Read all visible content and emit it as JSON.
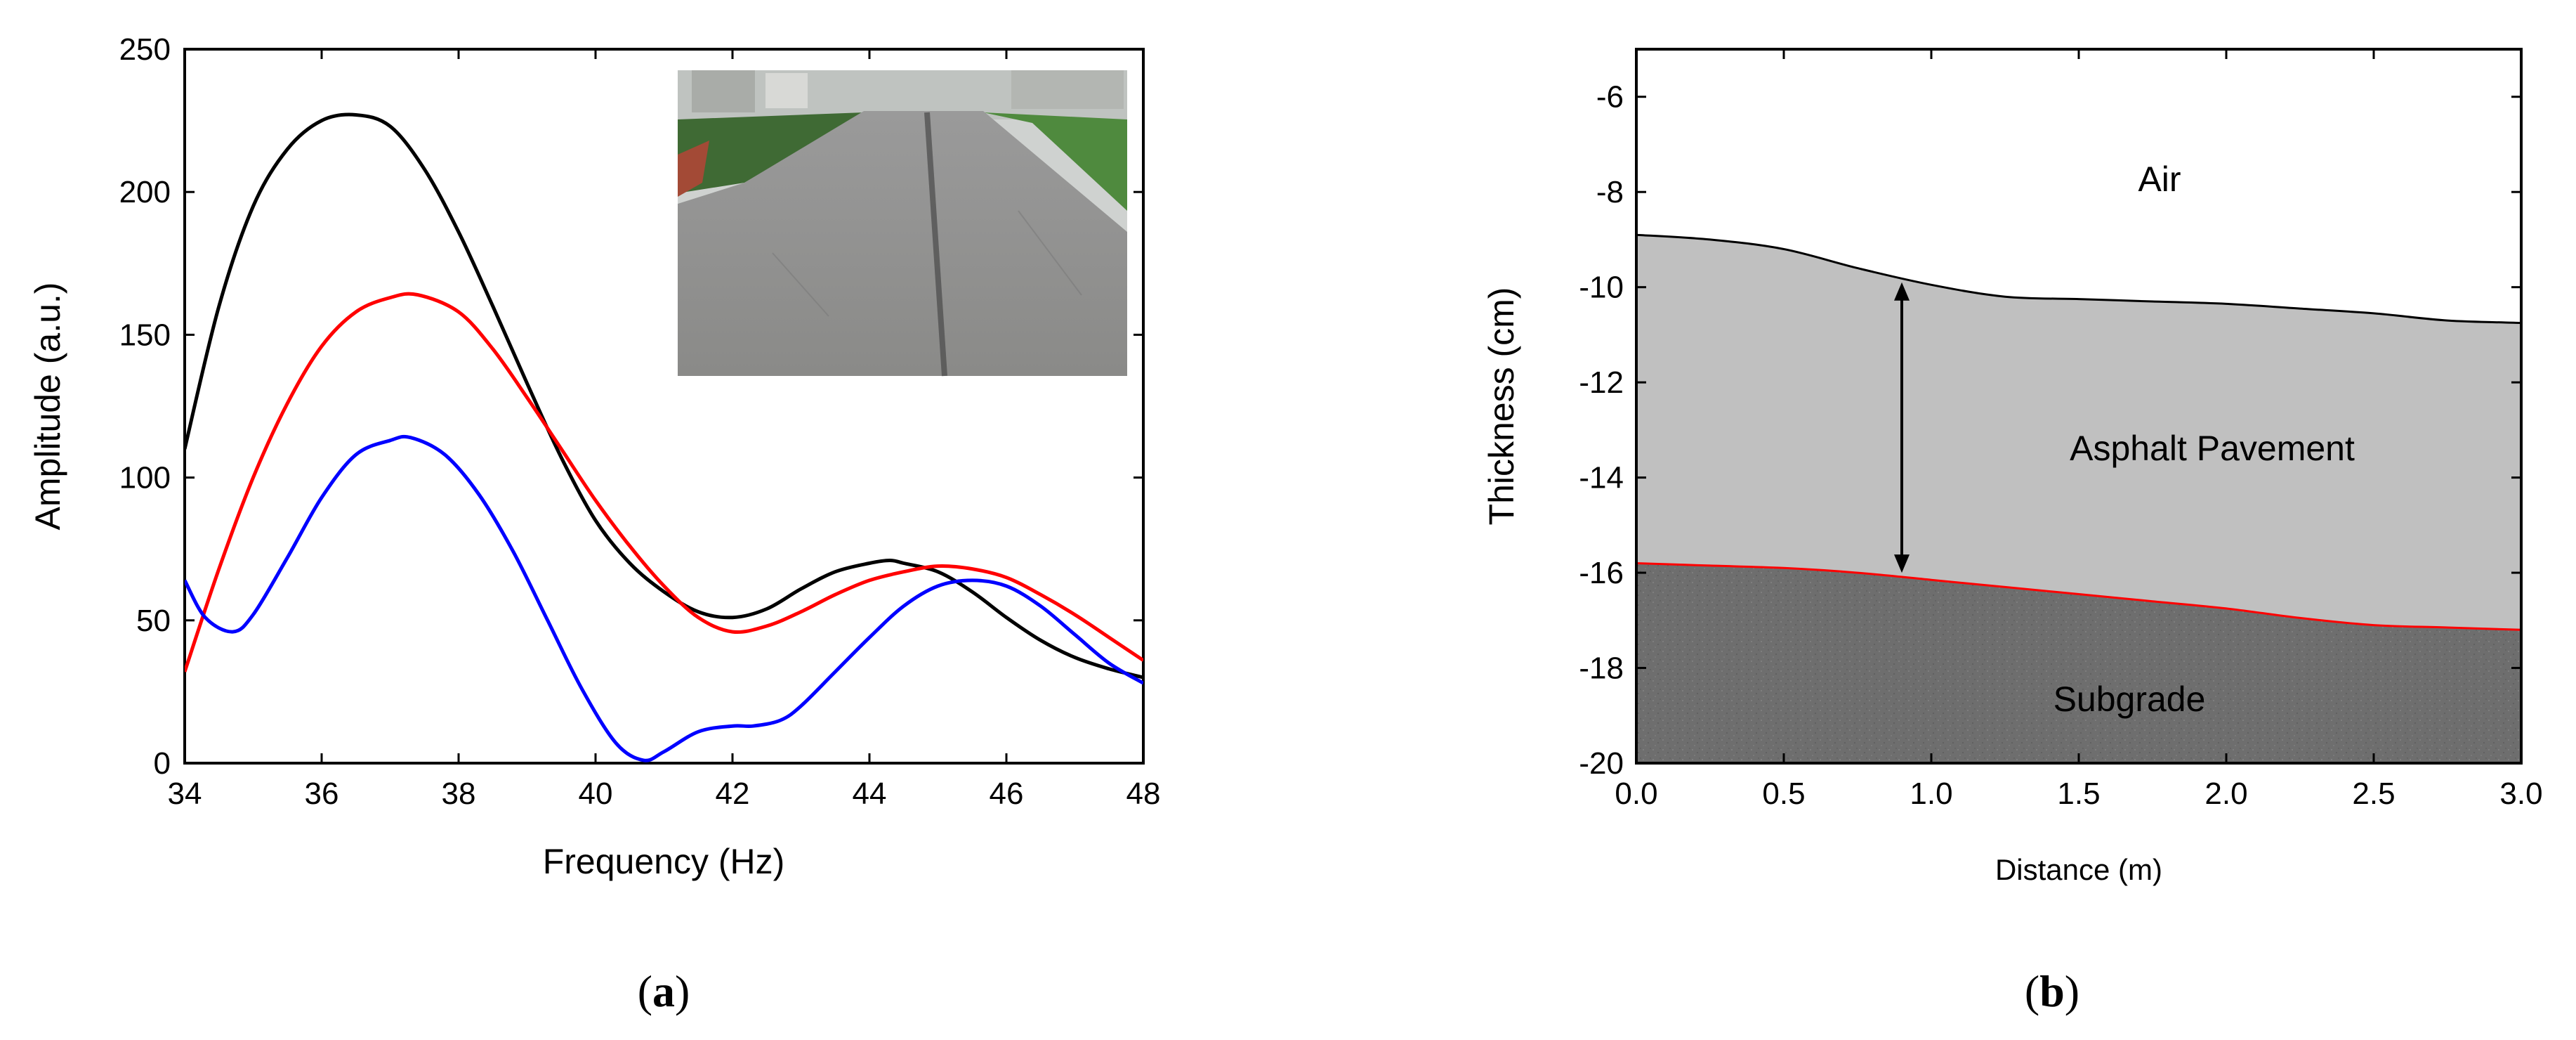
{
  "colors": {
    "black_series": "#000000",
    "red_series": "#ff0000",
    "blue_series": "#0000ff",
    "pavement_fill": "#c0c0c0",
    "subgrade_fill": "#6e6e6e",
    "interface_line": "#ff0000"
  },
  "chart_data": [
    {
      "type": "line",
      "panel_label": "a",
      "xlabel": "Frequency (Hz)",
      "ylabel": "Amplitude (a.u.)",
      "xlim": [
        34,
        48
      ],
      "ylim": [
        0,
        250
      ],
      "xticks": [
        34,
        36,
        38,
        40,
        42,
        44,
        46,
        48
      ],
      "yticks": [
        0,
        50,
        100,
        150,
        200,
        250
      ],
      "inset": "photo of asphalt road",
      "series": [
        {
          "color": "#000000",
          "x": [
            34,
            34.5,
            35,
            35.5,
            36,
            36.5,
            37,
            37.5,
            38,
            38.5,
            39,
            39.5,
            40,
            40.5,
            41,
            41.5,
            42,
            42.5,
            43,
            43.5,
            44,
            44.3,
            44.5,
            45,
            45.5,
            46,
            46.5,
            47,
            47.5,
            48
          ],
          "y": [
            110,
            160,
            195,
            215,
            225,
            227,
            223,
            208,
            186,
            160,
            133,
            107,
            85,
            70,
            60,
            53,
            51,
            54,
            61,
            67,
            70,
            71,
            70,
            67,
            60,
            51,
            43,
            37,
            33,
            30
          ]
        },
        {
          "color": "#ff0000",
          "x": [
            34,
            34.5,
            35,
            35.5,
            36,
            36.5,
            37,
            37.4,
            38,
            38.5,
            39,
            39.5,
            40,
            40.5,
            41,
            41.5,
            42,
            42.5,
            43,
            43.5,
            44,
            44.5,
            45,
            45.5,
            46,
            46.5,
            47,
            47.5,
            48
          ],
          "y": [
            32,
            68,
            100,
            126,
            146,
            158,
            163,
            164,
            158,
            145,
            128,
            110,
            92,
            76,
            62,
            51,
            46,
            48,
            53,
            59,
            64,
            67,
            69,
            68,
            65,
            59,
            52,
            44,
            36
          ]
        },
        {
          "color": "#0000ff",
          "x": [
            34,
            34.3,
            34.7,
            35,
            35.5,
            36,
            36.5,
            37,
            37.3,
            37.8,
            38.3,
            38.8,
            39.3,
            39.8,
            40.3,
            40.7,
            41,
            41.5,
            42,
            42.3,
            42.7,
            43,
            43.5,
            44,
            44.5,
            45,
            45.5,
            46,
            46.5,
            47,
            47.5,
            48
          ],
          "y": [
            64,
            51,
            46,
            52,
            72,
            93,
            108,
            113,
            114,
            108,
            94,
            74,
            50,
            26,
            7,
            1,
            4,
            11,
            13,
            13,
            15,
            20,
            32,
            44,
            55,
            62,
            64,
            62,
            55,
            45,
            35,
            28
          ]
        }
      ]
    },
    {
      "type": "area",
      "panel_label": "b",
      "xlabel": "Distance (m)",
      "ylabel": "Thickness (cm)",
      "xlim": [
        0.0,
        3.0
      ],
      "ylim": [
        -20,
        -5
      ],
      "xticks": [
        "0.0",
        "0.5",
        "1.0",
        "1.5",
        "2.0",
        "2.5",
        "3.0"
      ],
      "yticks": [
        -20,
        -18,
        -16,
        -14,
        -12,
        -10,
        -8,
        -6
      ],
      "regions": [
        "Air",
        "Asphalt Pavement",
        "Subgrade"
      ],
      "surface": {
        "x": [
          0.0,
          0.25,
          0.5,
          0.75,
          1.0,
          1.25,
          1.5,
          1.75,
          2.0,
          2.25,
          2.5,
          2.75,
          3.0
        ],
        "y": [
          -8.9,
          -9.0,
          -9.2,
          -9.6,
          -9.95,
          -10.2,
          -10.25,
          -10.3,
          -10.35,
          -10.45,
          -10.55,
          -10.7,
          -10.75
        ]
      },
      "interface": {
        "x": [
          0.0,
          0.25,
          0.5,
          0.75,
          1.0,
          1.25,
          1.5,
          1.75,
          2.0,
          2.25,
          2.5,
          2.75,
          3.0
        ],
        "y": [
          -15.8,
          -15.85,
          -15.9,
          -16.0,
          -16.15,
          -16.3,
          -16.45,
          -16.6,
          -16.75,
          -16.95,
          -17.1,
          -17.15,
          -17.2
        ]
      },
      "thickness_arrow_x": 0.9
    }
  ]
}
